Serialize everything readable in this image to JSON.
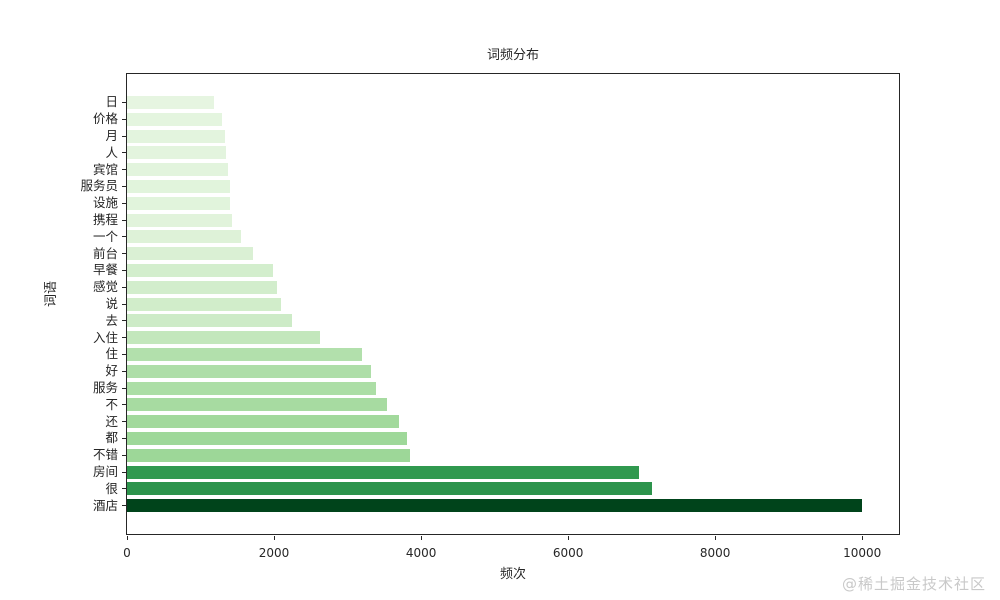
{
  "chart": {
    "title": "词频分布",
    "xlabel": "频次",
    "ylabel": "词语"
  },
  "watermark": "@稀土掘金技术社区",
  "chart_data": {
    "type": "bar",
    "orientation": "horizontal",
    "title": "词频分布",
    "xlabel": "频次",
    "ylabel": "词语",
    "grid": false,
    "legend": null,
    "colormap": "Greens",
    "xlim": [
      0,
      10500
    ],
    "xticks": [
      0,
      2000,
      4000,
      6000,
      8000,
      10000
    ],
    "categories": [
      "日",
      "价格",
      "月",
      "人",
      "宾馆",
      "服务员",
      "设施",
      "携程",
      "一个",
      "前台",
      "早餐",
      "感觉",
      "说",
      "去",
      "入住",
      "住",
      "好",
      "服务",
      "不",
      "还",
      "都",
      "不错",
      "房间",
      "很",
      "酒店"
    ],
    "values": [
      1180,
      1290,
      1330,
      1340,
      1370,
      1400,
      1400,
      1430,
      1550,
      1720,
      1980,
      2040,
      2100,
      2240,
      2630,
      3190,
      3320,
      3380,
      3540,
      3700,
      3810,
      3850,
      6960,
      7140,
      10000
    ],
    "bar_colors": [
      "#e6f5e1",
      "#e4f5df",
      "#e3f4de",
      "#e3f4de",
      "#e2f4dd",
      "#e1f4dc",
      "#e1f4dc",
      "#e1f3db",
      "#def2d8",
      "#daf0d4",
      "#d3eecd",
      "#d2edcc",
      "#d1edca",
      "#cdebc7",
      "#c3e7bc",
      "#b2e0ac",
      "#aedea8",
      "#acdea6",
      "#a7dba1",
      "#a2d99c",
      "#9ed899",
      "#9dd798",
      "#30994f",
      "#2c944c",
      "#00441b"
    ],
    "axis_color": "#262626"
  }
}
